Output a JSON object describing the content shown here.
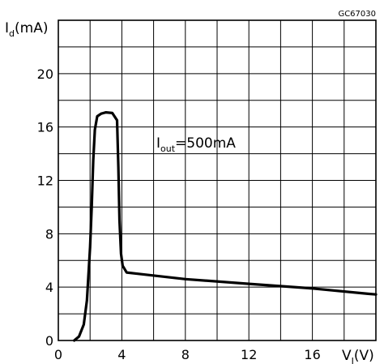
{
  "chart_data": {
    "type": "line",
    "code": "GC67030",
    "ylabel": {
      "main": "I",
      "sub": "d",
      "unit": "(mA)"
    },
    "xlabel": {
      "main": "V",
      "sub": "I",
      "unit": "(V)"
    },
    "annotation": {
      "main": "I",
      "sub": "out",
      "suffix": "=500mA"
    },
    "xlim": [
      0,
      20
    ],
    "ylim": [
      0,
      24
    ],
    "grid": true,
    "x_ticks": [
      0,
      4,
      8,
      12,
      16
    ],
    "y_ticks": [
      0,
      4,
      8,
      12,
      16,
      20
    ],
    "series": [
      {
        "points": [
          [
            1.0,
            0.0
          ],
          [
            1.3,
            0.3
          ],
          [
            1.6,
            1.2
          ],
          [
            1.8,
            3.0
          ],
          [
            2.0,
            7.0
          ],
          [
            2.1,
            10.0
          ],
          [
            2.2,
            13.5
          ],
          [
            2.3,
            15.8
          ],
          [
            2.45,
            16.8
          ],
          [
            2.7,
            17.0
          ],
          [
            3.0,
            17.1
          ],
          [
            3.4,
            17.05
          ],
          [
            3.7,
            16.5
          ],
          [
            3.78,
            13.0
          ],
          [
            3.85,
            9.0
          ],
          [
            3.95,
            6.5
          ],
          [
            4.05,
            5.6
          ],
          [
            4.3,
            5.1
          ],
          [
            5.0,
            5.0
          ],
          [
            8.0,
            4.6
          ],
          [
            12.0,
            4.25
          ],
          [
            16.0,
            3.9
          ],
          [
            19.5,
            3.5
          ],
          [
            20.0,
            3.45
          ]
        ]
      }
    ]
  }
}
